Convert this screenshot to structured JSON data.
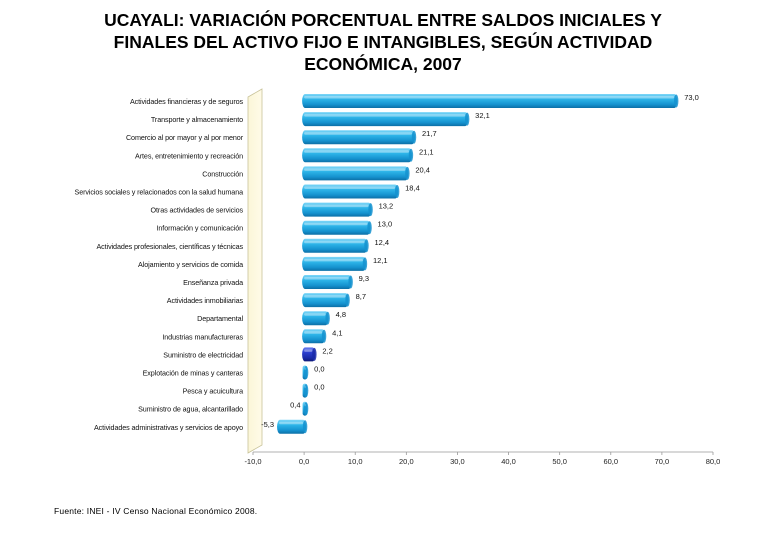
{
  "chart_data": {
    "type": "bar",
    "orientation": "horizontal",
    "title": "UCAYALI: VARIACIÓN PORCENTUAL ENTRE SALDOS INICIALES Y\nFINALES DEL ACTIVO FIJO E INTANGIBLES, SEGÚN ACTIVIDAD\nECONÓMICA, 2007",
    "xlim": [
      -10,
      80
    ],
    "xticks": [
      "-10,0",
      "0,0",
      "10,0",
      "20,0",
      "30,0",
      "40,0",
      "50,0",
      "60,0",
      "70,0",
      "80,0"
    ],
    "xtick_values": [
      -10,
      0,
      10,
      20,
      30,
      40,
      50,
      60,
      70,
      80
    ],
    "grid": false,
    "legend": "none",
    "bar_color": "#1ea6e0",
    "highlight_color": "#1f2fb0",
    "highlight_category": "Suministro de electricidad",
    "categories": [
      "Actividades financieras y de seguros",
      "Transporte y almacenamiento",
      "Comercio al por mayor y al por menor",
      "Artes, entretenimiento y recreación",
      "Construcción",
      "Servicios sociales y relacionados con la salud humana",
      "Otras actividades de servicios",
      "Información y comunicación",
      "Actividades profesionales, científicas y técnicas",
      "Alojamiento y servicios de comida",
      "Enseñanza privada",
      "Actividades inmobiliarias",
      "Departamental",
      "Industrias manufactureras",
      "Suministro de electricidad",
      "Explotación de minas y canteras",
      "Pesca y acuicultura",
      "Suministro de agua, alcantarillado",
      "Actividades administrativas y servicios de apoyo"
    ],
    "values": [
      73.0,
      32.1,
      21.7,
      21.1,
      20.4,
      18.4,
      13.2,
      13.0,
      12.4,
      12.1,
      9.3,
      8.7,
      4.8,
      4.1,
      2.2,
      0.0,
      0.0,
      0.4,
      -5.3
    ],
    "labels": [
      "73,0",
      "32,1",
      "21,7",
      "21,1",
      "20,4",
      "18,4",
      "13,2",
      "13,0",
      "12,4",
      "12,1",
      "9,3",
      "8,7",
      "4,8",
      "4,1",
      "2,2",
      "0,0",
      "0,0",
      "0,4",
      "-5,3"
    ]
  },
  "source": "Fuente: INEI - IV Censo Nacional Económico 2008."
}
